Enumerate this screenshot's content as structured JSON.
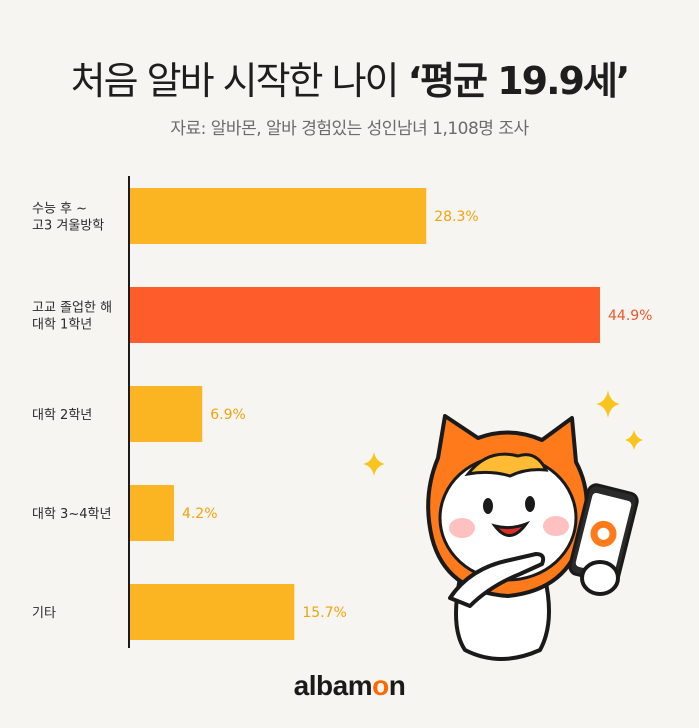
{
  "header": {
    "title_prefix": "처음 알바 시작한 나이 ",
    "title_highlight": "‘평균 19.9세’",
    "subtitle": "자료: 알바몬, 알바 경험있는 성인남녀 1,108명 조사"
  },
  "chart_data": {
    "type": "bar",
    "orientation": "horizontal",
    "categories": [
      [
        "수능 후 ~",
        "고3 겨울방학"
      ],
      [
        "고교 졸업한 해",
        "대학 1학년"
      ],
      [
        "대학 2학년"
      ],
      [
        "대학 3~4학년"
      ],
      [
        "기타"
      ]
    ],
    "values": [
      28.3,
      44.9,
      6.9,
      4.2,
      15.7
    ],
    "value_labels": [
      "28.3%",
      "44.9%",
      "6.9%",
      "4.2%",
      "15.7%"
    ],
    "highlight_index": 1,
    "xlim": [
      0,
      49
    ]
  },
  "colors": {
    "bar": "#fbb523",
    "bar_highlight": "#ff5c2b",
    "label": "#f1a30f",
    "label_highlight": "#f1562a"
  },
  "footer": {
    "logo_pre": "alb",
    "logo_mid": "am",
    "logo_o": "o",
    "logo_post": "n"
  }
}
